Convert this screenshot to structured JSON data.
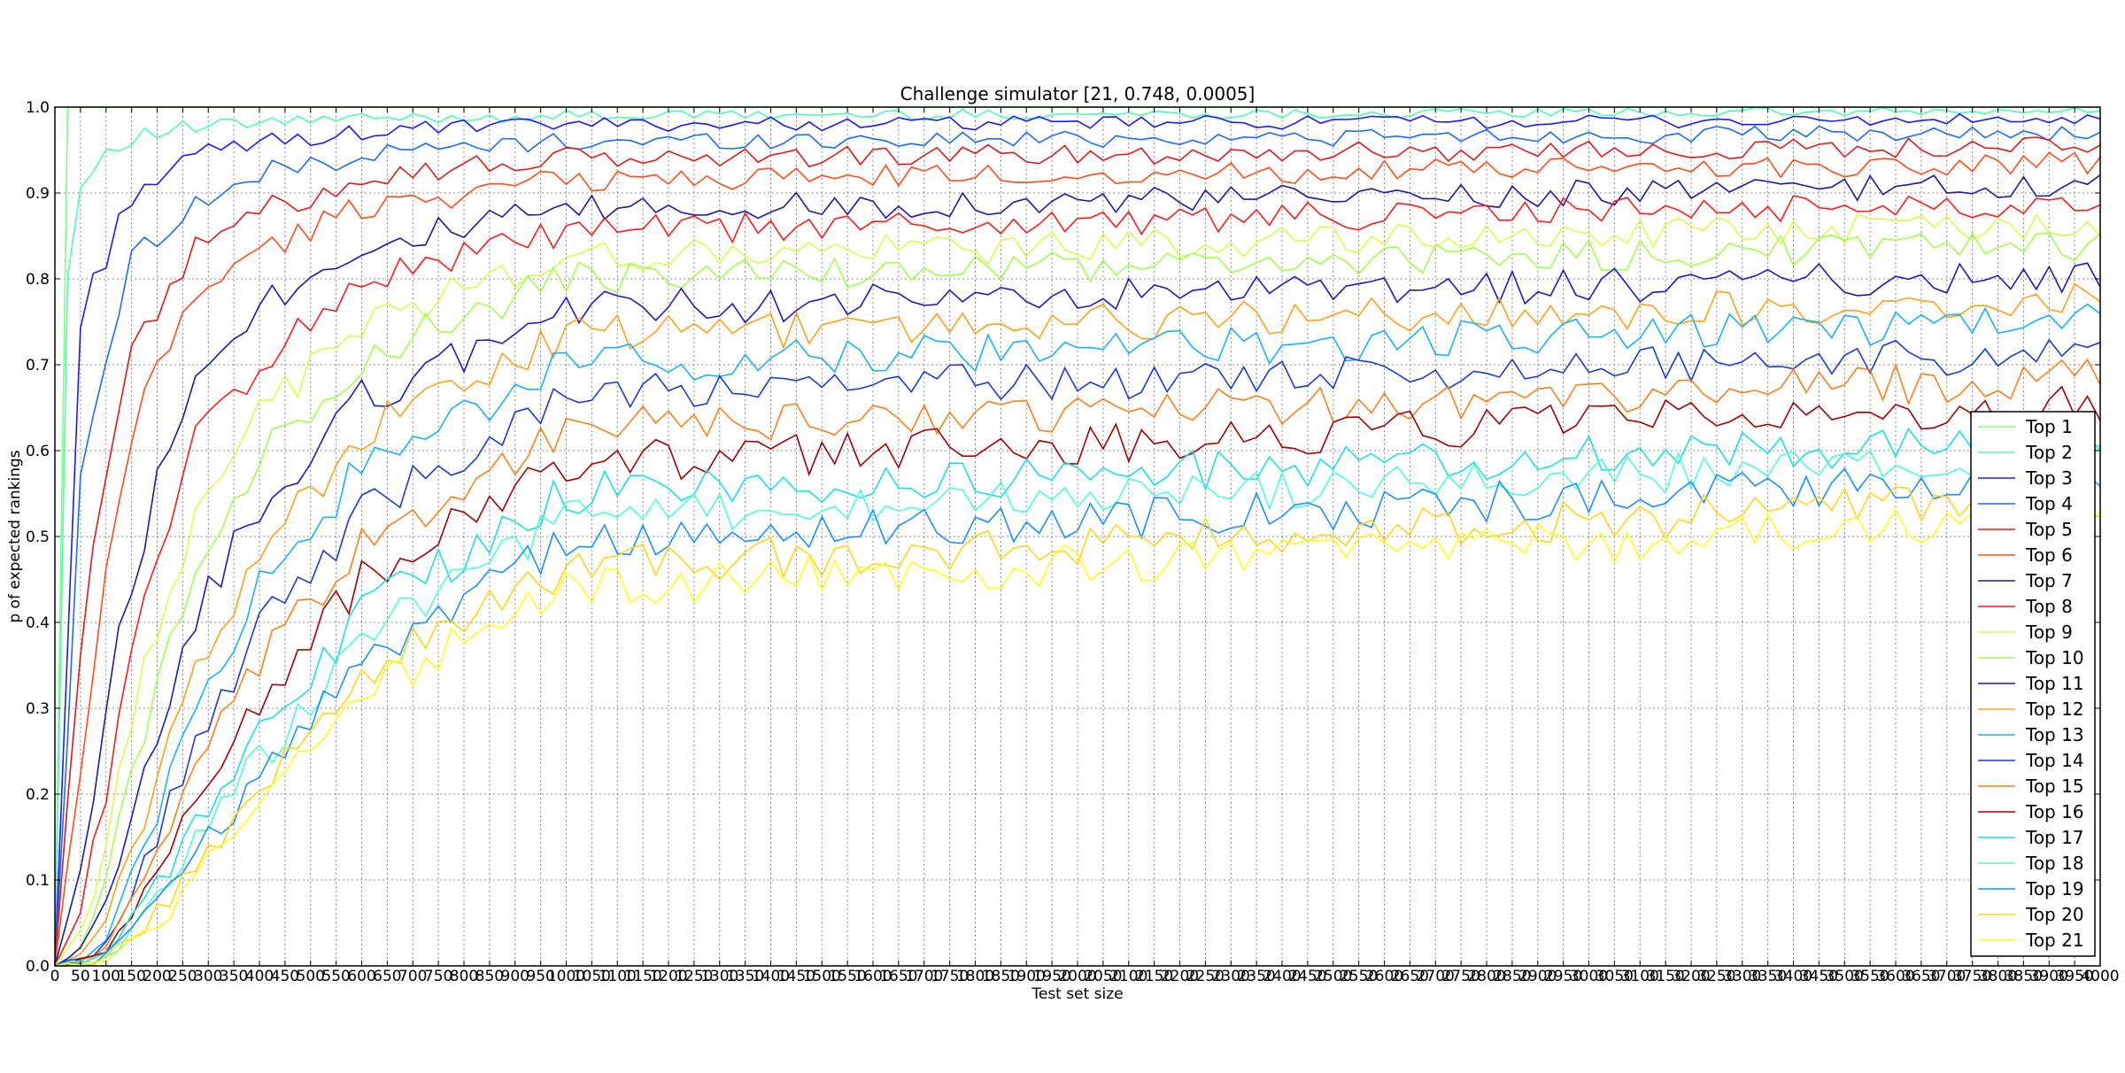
{
  "chart_data": {
    "type": "line",
    "title": "Challenge simulator [21, 0.748, 0.0005]",
    "xlabel": "Test set size",
    "ylabel": "p of expected rankings",
    "xlim": [
      0,
      4000
    ],
    "ylim": [
      0.0,
      1.0
    ],
    "grid": true,
    "legend_position": "right",
    "x_step": 25,
    "x_ticks": [
      0,
      50,
      100,
      150,
      200,
      250,
      300,
      350,
      400,
      450,
      500,
      550,
      600,
      650,
      700,
      750,
      800,
      850,
      900,
      950,
      1000,
      1050,
      1100,
      1150,
      1200,
      1250,
      1300,
      1350,
      1400,
      1450,
      1500,
      1550,
      1600,
      1650,
      1700,
      1750,
      1800,
      1850,
      1900,
      1950,
      2000,
      2050,
      2100,
      2150,
      2200,
      2250,
      2300,
      2350,
      2400,
      2450,
      2500,
      2550,
      2600,
      2650,
      2700,
      2750,
      2800,
      2850,
      2900,
      2950,
      3000,
      3050,
      3100,
      3150,
      3200,
      3250,
      3300,
      3350,
      3400,
      3450,
      3500,
      3550,
      3600,
      3650,
      3700,
      3750,
      3800,
      3850,
      3900,
      3950,
      4000
    ],
    "y_ticks": [
      "0.0",
      "0.1",
      "0.2",
      "0.3",
      "0.4",
      "0.5",
      "0.6",
      "0.7",
      "0.8",
      "0.9",
      "1.0"
    ],
    "series": [
      {
        "name": "Top 1",
        "color": "#7fff7f",
        "profile": [
          [
            0,
            0
          ],
          [
            25,
            1.0
          ],
          [
            4000,
            1.0
          ]
        ]
      },
      {
        "name": "Top 2",
        "color": "#4dffb0",
        "profile": [
          [
            0,
            0
          ],
          [
            25,
            0.8
          ],
          [
            50,
            0.91
          ],
          [
            100,
            0.95
          ],
          [
            150,
            0.965
          ],
          [
            250,
            0.975
          ],
          [
            500,
            0.985
          ],
          [
            1000,
            0.99
          ],
          [
            4000,
            0.995
          ]
        ]
      },
      {
        "name": "Top 3",
        "color": "#1a1aff",
        "profile": [
          [
            0,
            0
          ],
          [
            50,
            0.75
          ],
          [
            100,
            0.83
          ],
          [
            150,
            0.9
          ],
          [
            250,
            0.935
          ],
          [
            350,
            0.955
          ],
          [
            500,
            0.965
          ],
          [
            700,
            0.975
          ],
          [
            1000,
            0.98
          ],
          [
            4000,
            0.985
          ]
        ]
      },
      {
        "name": "Top 4",
        "color": "#1a6cff",
        "profile": [
          [
            0,
            0
          ],
          [
            50,
            0.55
          ],
          [
            100,
            0.72
          ],
          [
            150,
            0.82
          ],
          [
            200,
            0.855
          ],
          [
            300,
            0.895
          ],
          [
            450,
            0.93
          ],
          [
            700,
            0.95
          ],
          [
            1000,
            0.96
          ],
          [
            4000,
            0.97
          ]
        ]
      },
      {
        "name": "Top 5",
        "color": "#e01a1a",
        "profile": [
          [
            0,
            0
          ],
          [
            50,
            0.36
          ],
          [
            100,
            0.58
          ],
          [
            150,
            0.74
          ],
          [
            200,
            0.77
          ],
          [
            300,
            0.85
          ],
          [
            400,
            0.875
          ],
          [
            600,
            0.92
          ],
          [
            1000,
            0.94
          ],
          [
            4000,
            0.955
          ]
        ]
      },
      {
        "name": "Top 6",
        "color": "#ff4d1a",
        "profile": [
          [
            0,
            0
          ],
          [
            50,
            0.22
          ],
          [
            100,
            0.44
          ],
          [
            150,
            0.62
          ],
          [
            200,
            0.7
          ],
          [
            300,
            0.8
          ],
          [
            400,
            0.83
          ],
          [
            600,
            0.885
          ],
          [
            1000,
            0.915
          ],
          [
            4000,
            0.935
          ]
        ]
      },
      {
        "name": "Top 7",
        "color": "#1a1aa0",
        "profile": [
          [
            0,
            0
          ],
          [
            50,
            0.11
          ],
          [
            100,
            0.3
          ],
          [
            150,
            0.45
          ],
          [
            200,
            0.56
          ],
          [
            300,
            0.72
          ],
          [
            400,
            0.77
          ],
          [
            600,
            0.84
          ],
          [
            1000,
            0.88
          ],
          [
            4000,
            0.91
          ]
        ]
      },
      {
        "name": "Top 8",
        "color": "#ff1a1a",
        "profile": [
          [
            0,
            0
          ],
          [
            50,
            0.06
          ],
          [
            100,
            0.21
          ],
          [
            150,
            0.36
          ],
          [
            200,
            0.47
          ],
          [
            300,
            0.65
          ],
          [
            400,
            0.7
          ],
          [
            600,
            0.8
          ],
          [
            1000,
            0.855
          ],
          [
            4000,
            0.89
          ]
        ]
      },
      {
        "name": "Top 9",
        "color": "#d4ff4d",
        "profile": [
          [
            0,
            0
          ],
          [
            50,
            0.04
          ],
          [
            100,
            0.14
          ],
          [
            150,
            0.28
          ],
          [
            200,
            0.4
          ],
          [
            300,
            0.57
          ],
          [
            400,
            0.64
          ],
          [
            600,
            0.75
          ],
          [
            1000,
            0.825
          ],
          [
            4000,
            0.865
          ]
        ]
      },
      {
        "name": "Top 10",
        "color": "#9fff4d",
        "profile": [
          [
            0,
            0
          ],
          [
            50,
            0.025
          ],
          [
            100,
            0.1
          ],
          [
            150,
            0.22
          ],
          [
            200,
            0.33
          ],
          [
            300,
            0.5
          ],
          [
            400,
            0.59
          ],
          [
            600,
            0.71
          ],
          [
            1000,
            0.8
          ],
          [
            4000,
            0.84
          ]
        ]
      },
      {
        "name": "Top 11",
        "color": "#1a1ac0",
        "profile": [
          [
            0,
            0
          ],
          [
            50,
            0.015
          ],
          [
            100,
            0.07
          ],
          [
            150,
            0.16
          ],
          [
            200,
            0.27
          ],
          [
            300,
            0.44
          ],
          [
            400,
            0.53
          ],
          [
            600,
            0.66
          ],
          [
            1000,
            0.765
          ],
          [
            4000,
            0.805
          ]
        ]
      },
      {
        "name": "Top 12",
        "color": "#ff9f1a",
        "profile": [
          [
            0,
            0
          ],
          [
            50,
            0.01
          ],
          [
            100,
            0.05
          ],
          [
            150,
            0.13
          ],
          [
            200,
            0.22
          ],
          [
            300,
            0.38
          ],
          [
            400,
            0.48
          ],
          [
            600,
            0.62
          ],
          [
            1000,
            0.735
          ],
          [
            4000,
            0.775
          ]
        ]
      },
      {
        "name": "Top 13",
        "color": "#1ab0ff",
        "profile": [
          [
            0,
            0
          ],
          [
            50,
            0.008
          ],
          [
            100,
            0.04
          ],
          [
            150,
            0.1
          ],
          [
            200,
            0.18
          ],
          [
            300,
            0.33
          ],
          [
            400,
            0.44
          ],
          [
            600,
            0.58
          ],
          [
            1000,
            0.7
          ],
          [
            4000,
            0.75
          ]
        ]
      },
      {
        "name": "Top 14",
        "color": "#1a3ad4",
        "profile": [
          [
            0,
            0
          ],
          [
            50,
            0.006
          ],
          [
            100,
            0.03
          ],
          [
            150,
            0.08
          ],
          [
            200,
            0.15
          ],
          [
            300,
            0.29
          ],
          [
            400,
            0.39
          ],
          [
            600,
            0.53
          ],
          [
            1000,
            0.665
          ],
          [
            4000,
            0.715
          ]
        ]
      },
      {
        "name": "Top 15",
        "color": "#ff7f1a",
        "profile": [
          [
            0,
            0
          ],
          [
            50,
            0.005
          ],
          [
            100,
            0.025
          ],
          [
            150,
            0.07
          ],
          [
            200,
            0.13
          ],
          [
            300,
            0.25
          ],
          [
            400,
            0.35
          ],
          [
            600,
            0.49
          ],
          [
            1000,
            0.625
          ],
          [
            4000,
            0.685
          ]
        ]
      },
      {
        "name": "Top 16",
        "color": "#a00000",
        "profile": [
          [
            0,
            0
          ],
          [
            50,
            0.004
          ],
          [
            100,
            0.02
          ],
          [
            150,
            0.06
          ],
          [
            200,
            0.11
          ],
          [
            300,
            0.22
          ],
          [
            400,
            0.31
          ],
          [
            600,
            0.45
          ],
          [
            1000,
            0.585
          ],
          [
            4000,
            0.655
          ]
        ]
      },
      {
        "name": "Top 17",
        "color": "#1ae0e0",
        "profile": [
          [
            0,
            0
          ],
          [
            50,
            0.003
          ],
          [
            100,
            0.016
          ],
          [
            150,
            0.05
          ],
          [
            200,
            0.09
          ],
          [
            300,
            0.19
          ],
          [
            400,
            0.27
          ],
          [
            600,
            0.41
          ],
          [
            1000,
            0.55
          ],
          [
            4000,
            0.615
          ]
        ]
      },
      {
        "name": "Top 18",
        "color": "#4dffd4",
        "profile": [
          [
            0,
            0
          ],
          [
            50,
            0.002
          ],
          [
            100,
            0.013
          ],
          [
            150,
            0.04
          ],
          [
            200,
            0.08
          ],
          [
            300,
            0.17
          ],
          [
            400,
            0.24
          ],
          [
            600,
            0.38
          ],
          [
            1000,
            0.52
          ],
          [
            4000,
            0.595
          ]
        ]
      },
      {
        "name": "Top 19",
        "color": "#1a8fff",
        "profile": [
          [
            0,
            0
          ],
          [
            50,
            0.002
          ],
          [
            100,
            0.01
          ],
          [
            150,
            0.035
          ],
          [
            200,
            0.07
          ],
          [
            300,
            0.15
          ],
          [
            400,
            0.22
          ],
          [
            600,
            0.36
          ],
          [
            1000,
            0.49
          ],
          [
            4000,
            0.575
          ]
        ]
      },
      {
        "name": "Top 20",
        "color": "#ffd41a",
        "profile": [
          [
            0,
            0
          ],
          [
            50,
            0.001
          ],
          [
            100,
            0.008
          ],
          [
            150,
            0.03
          ],
          [
            200,
            0.06
          ],
          [
            300,
            0.14
          ],
          [
            400,
            0.2
          ],
          [
            600,
            0.34
          ],
          [
            1000,
            0.465
          ],
          [
            4000,
            0.545
          ]
        ]
      },
      {
        "name": "Top 21",
        "color": "#ffff1a",
        "profile": [
          [
            0,
            0
          ],
          [
            50,
            0.001
          ],
          [
            100,
            0.006
          ],
          [
            150,
            0.025
          ],
          [
            200,
            0.05
          ],
          [
            300,
            0.12
          ],
          [
            400,
            0.18
          ],
          [
            600,
            0.32
          ],
          [
            1000,
            0.44
          ],
          [
            4000,
            0.52
          ]
        ]
      }
    ]
  }
}
